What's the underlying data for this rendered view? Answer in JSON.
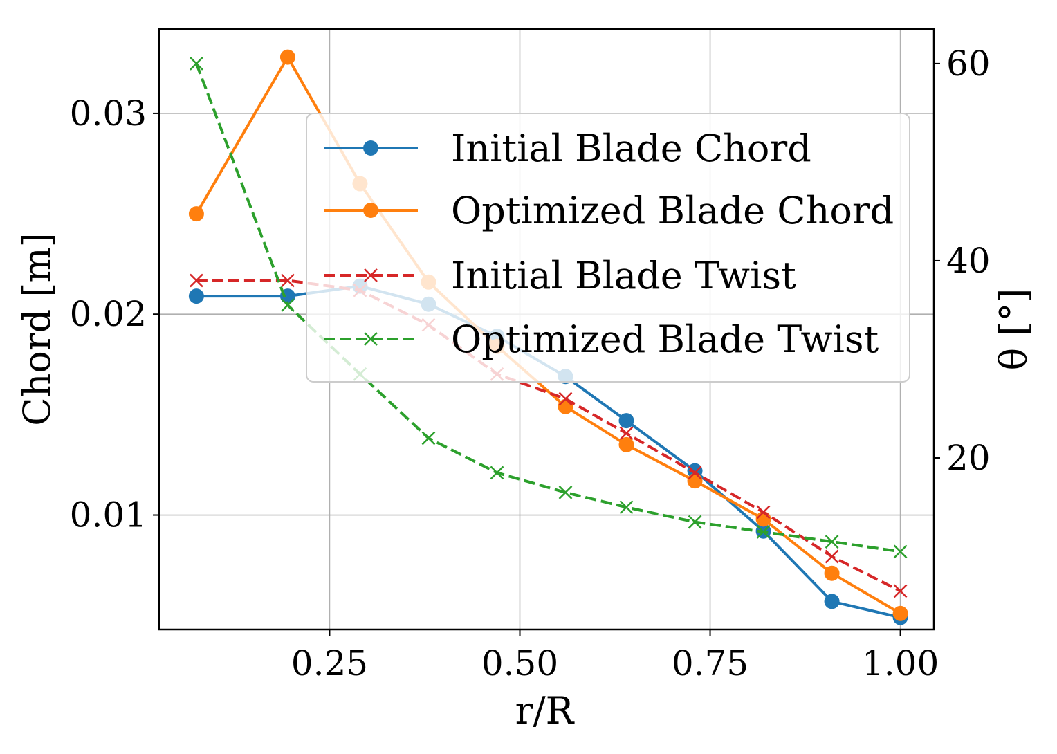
{
  "chart_data": {
    "type": "line",
    "xlabel": "r/R",
    "ylabel": "Chord [m]",
    "y2label": "θ [°]",
    "xlim": [
      0.026,
      1.044
    ],
    "ylim": [
      0.0043,
      0.0342
    ],
    "y2lim": [
      2.6,
      63.5
    ],
    "xticks": [
      0.25,
      0.5,
      0.75,
      1.0
    ],
    "xtick_labels": [
      "0.25",
      "0.50",
      "0.75",
      "1.00"
    ],
    "yticks": [
      0.01,
      0.02,
      0.03
    ],
    "ytick_labels": [
      "0.01",
      "0.02",
      "0.03"
    ],
    "y2ticks": [
      20,
      40,
      60
    ],
    "y2tick_labels": [
      "20",
      "40",
      "60"
    ],
    "grid": true,
    "legend_position": "upper-right",
    "x": [
      0.075,
      0.195,
      0.29,
      0.38,
      0.47,
      0.56,
      0.64,
      0.73,
      0.82,
      0.91,
      1.0
    ],
    "series": [
      {
        "name": "Initial Blade Chord",
        "axis": "left",
        "color": "#1f77b4",
        "marker": "circle",
        "linestyle": "solid",
        "values": [
          0.0209,
          0.0209,
          0.0214,
          0.0205,
          0.0189,
          0.0169,
          0.0147,
          0.0122,
          0.0092,
          0.0057,
          0.0049
        ]
      },
      {
        "name": "Optimized Blade Chord",
        "axis": "left",
        "color": "#ff7f0e",
        "marker": "circle",
        "linestyle": "solid",
        "values": [
          0.025,
          0.0328,
          0.0265,
          0.0216,
          0.0184,
          0.0154,
          0.0135,
          0.0117,
          0.0098,
          0.0071,
          0.0051
        ]
      },
      {
        "name": "Initial Blade Twist",
        "axis": "right",
        "color": "#d62728",
        "marker": "x",
        "linestyle": "dashed",
        "values": [
          38.0,
          38.0,
          37.0,
          33.5,
          28.5,
          26.0,
          22.5,
          18.5,
          14.5,
          10.0,
          6.5
        ]
      },
      {
        "name": "Optimized Blade Twist",
        "axis": "right",
        "color": "#2ca02c",
        "marker": "x",
        "linestyle": "dashed",
        "values": [
          60.0,
          35.5,
          28.5,
          22.0,
          18.5,
          16.5,
          15.0,
          13.5,
          12.5,
          11.5,
          10.5
        ]
      }
    ]
  }
}
